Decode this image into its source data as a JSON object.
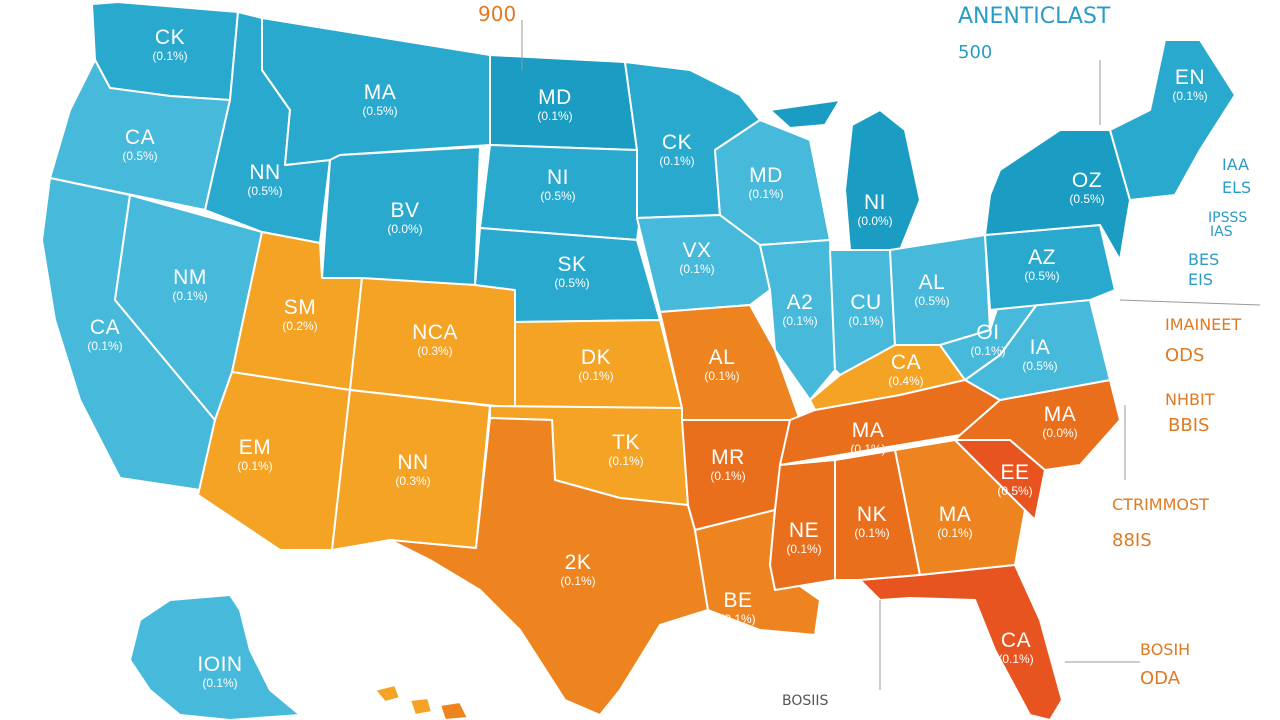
{
  "header": {
    "top_value": "900",
    "title": "ANENTICLAST",
    "title_value": "500"
  },
  "colors": {
    "blue_dark": "#1b9cc3",
    "blue_mid": "#2aa9cf",
    "blue_light": "#47b9da",
    "amber": "#f4a325",
    "orange": "#ee8420",
    "deep_orange": "#ea6f1d",
    "red_orange": "#e8541f",
    "teal_text": "#2b9cc4",
    "orange_text": "#e07a22"
  },
  "states": [
    {
      "id": "wa",
      "abbr": "CK",
      "pct": "(0.1%)"
    },
    {
      "id": "or",
      "abbr": "CA",
      "pct": "(0.5%)"
    },
    {
      "id": "ca",
      "abbr": "CA",
      "pct": "(0.1%)"
    },
    {
      "id": "nv",
      "abbr": "NM",
      "pct": "(0.1%)"
    },
    {
      "id": "id",
      "abbr": "NN",
      "pct": "(0.5%)"
    },
    {
      "id": "mt",
      "abbr": "MA",
      "pct": "(0.5%)"
    },
    {
      "id": "wy",
      "abbr": "BV",
      "pct": "(0.0%)"
    },
    {
      "id": "ut",
      "abbr": "SM",
      "pct": "(0.2%)"
    },
    {
      "id": "co",
      "abbr": "NCA",
      "pct": "(0.3%)"
    },
    {
      "id": "az",
      "abbr": "EM",
      "pct": "(0.1%)"
    },
    {
      "id": "nm",
      "abbr": "NN",
      "pct": "(0.3%)"
    },
    {
      "id": "nd",
      "abbr": "MD",
      "pct": "(0.1%)"
    },
    {
      "id": "sd",
      "abbr": "NI",
      "pct": "(0.5%)"
    },
    {
      "id": "ne",
      "abbr": "SK",
      "pct": "(0.5%)"
    },
    {
      "id": "ks",
      "abbr": "DK",
      "pct": "(0.1%)"
    },
    {
      "id": "ok",
      "abbr": "TK",
      "pct": "(0.1%)"
    },
    {
      "id": "tx",
      "abbr": "2K",
      "pct": "(0.1%)"
    },
    {
      "id": "mn",
      "abbr": "CK",
      "pct": "(0.1%)"
    },
    {
      "id": "ia",
      "abbr": "VX",
      "pct": "(0.1%)"
    },
    {
      "id": "mo",
      "abbr": "AL",
      "pct": "(0.1%)"
    },
    {
      "id": "ar",
      "abbr": "MR",
      "pct": "(0.1%)"
    },
    {
      "id": "la",
      "abbr": "BE",
      "pct": "(0.1%)"
    },
    {
      "id": "wi",
      "abbr": "MD",
      "pct": "(0.1%)"
    },
    {
      "id": "il",
      "abbr": "A2",
      "pct": "(0.1%)"
    },
    {
      "id": "mi",
      "abbr": "NI",
      "pct": "(0.0%)"
    },
    {
      "id": "in",
      "abbr": "CU",
      "pct": "(0.1%)"
    },
    {
      "id": "oh",
      "abbr": "AL",
      "pct": "(0.5%)"
    },
    {
      "id": "ky",
      "abbr": "CA",
      "pct": "(0.4%)"
    },
    {
      "id": "tn",
      "abbr": "MA",
      "pct": "(0.1%)"
    },
    {
      "id": "ms",
      "abbr": "NE",
      "pct": "(0.1%)"
    },
    {
      "id": "al",
      "abbr": "NK",
      "pct": "(0.1%)"
    },
    {
      "id": "ga",
      "abbr": "MA",
      "pct": "(0.1%)"
    },
    {
      "id": "fl",
      "abbr": "CA",
      "pct": "(0.1%)"
    },
    {
      "id": "sc",
      "abbr": "EE",
      "pct": "(0.5%)"
    },
    {
      "id": "nc",
      "abbr": "MA",
      "pct": "(0.0%)"
    },
    {
      "id": "va",
      "abbr": "IA",
      "pct": "(0.5%)"
    },
    {
      "id": "wv",
      "abbr": "OI",
      "pct": "(0.1%)"
    },
    {
      "id": "pa",
      "abbr": "AZ",
      "pct": "(0.5%)"
    },
    {
      "id": "ny",
      "abbr": "OZ",
      "pct": "(0.5%)"
    },
    {
      "id": "me",
      "abbr": "EN",
      "pct": "(0.1%)"
    },
    {
      "id": "ak",
      "abbr": "IOIN",
      "pct": "(0.1%)"
    }
  ],
  "side_labels": [
    {
      "text": "IAA"
    },
    {
      "text": "ELS"
    },
    {
      "text": "IPSSS"
    },
    {
      "text": "IAS"
    },
    {
      "text": "BES"
    },
    {
      "text": "EIS"
    },
    {
      "text": "IMAINEET"
    },
    {
      "text": "ODS"
    },
    {
      "text": "NHBIT"
    },
    {
      "text": "BBIS"
    },
    {
      "text": "CTRIMMOST"
    },
    {
      "text": "88IS"
    },
    {
      "text": "BOSIH"
    },
    {
      "text": "ODA"
    },
    {
      "text": "BOSIIS"
    }
  ]
}
